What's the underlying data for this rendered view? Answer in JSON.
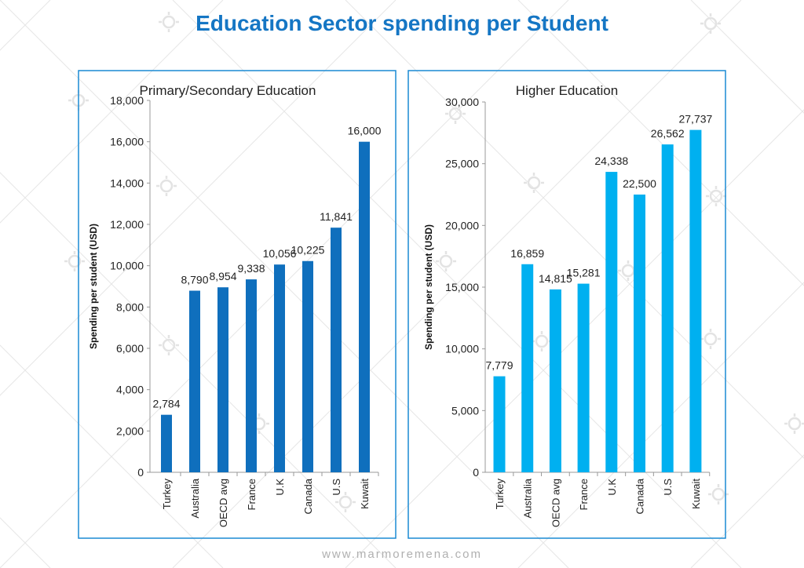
{
  "title": "Education Sector spending per Student",
  "footer": "www.marmoremena.com",
  "watermark": "MARMORE",
  "chart_data": [
    {
      "type": "bar",
      "title": "Primary/Secondary Education",
      "ylabel": "Spending per student (USD)",
      "xlabel": "",
      "categories": [
        "Turkey",
        "Australia",
        "OECD avg",
        "France",
        "U.K",
        "Canada",
        "U.S",
        "Kuwait"
      ],
      "values": [
        2784,
        8790,
        8954,
        9338,
        10056,
        10225,
        11841,
        16000
      ],
      "data_labels": [
        "2,784",
        "8,790",
        "8,954",
        "9,338",
        "10,056",
        "10,225",
        "11,841",
        "16,000"
      ],
      "ylim": [
        0,
        18000
      ],
      "yticks": [
        "0",
        "2,000",
        "4,000",
        "6,000",
        "8,000",
        "10,000",
        "12,000",
        "14,000",
        "16,000",
        "18,000"
      ],
      "grid": false,
      "color": "#0f6fbd"
    },
    {
      "type": "bar",
      "title": "Higher Education",
      "ylabel": "Spending per student (USD)",
      "xlabel": "",
      "categories": [
        "Turkey",
        "Australia",
        "OECD avg",
        "France",
        "U.K",
        "Canada",
        "U.S",
        "Kuwait"
      ],
      "values": [
        7779,
        16859,
        14815,
        15281,
        24338,
        22500,
        26562,
        27737
      ],
      "data_labels": [
        "7,779",
        "16,859",
        "14,815",
        "15,281",
        "24,338",
        "22,500",
        "26,562",
        "27,737"
      ],
      "ylim": [
        0,
        30000
      ],
      "yticks": [
        "0",
        "5,000",
        "10,000",
        "15,000",
        "20,000",
        "25,000",
        "30,000"
      ],
      "grid": false,
      "color": "#00b0f0"
    }
  ]
}
